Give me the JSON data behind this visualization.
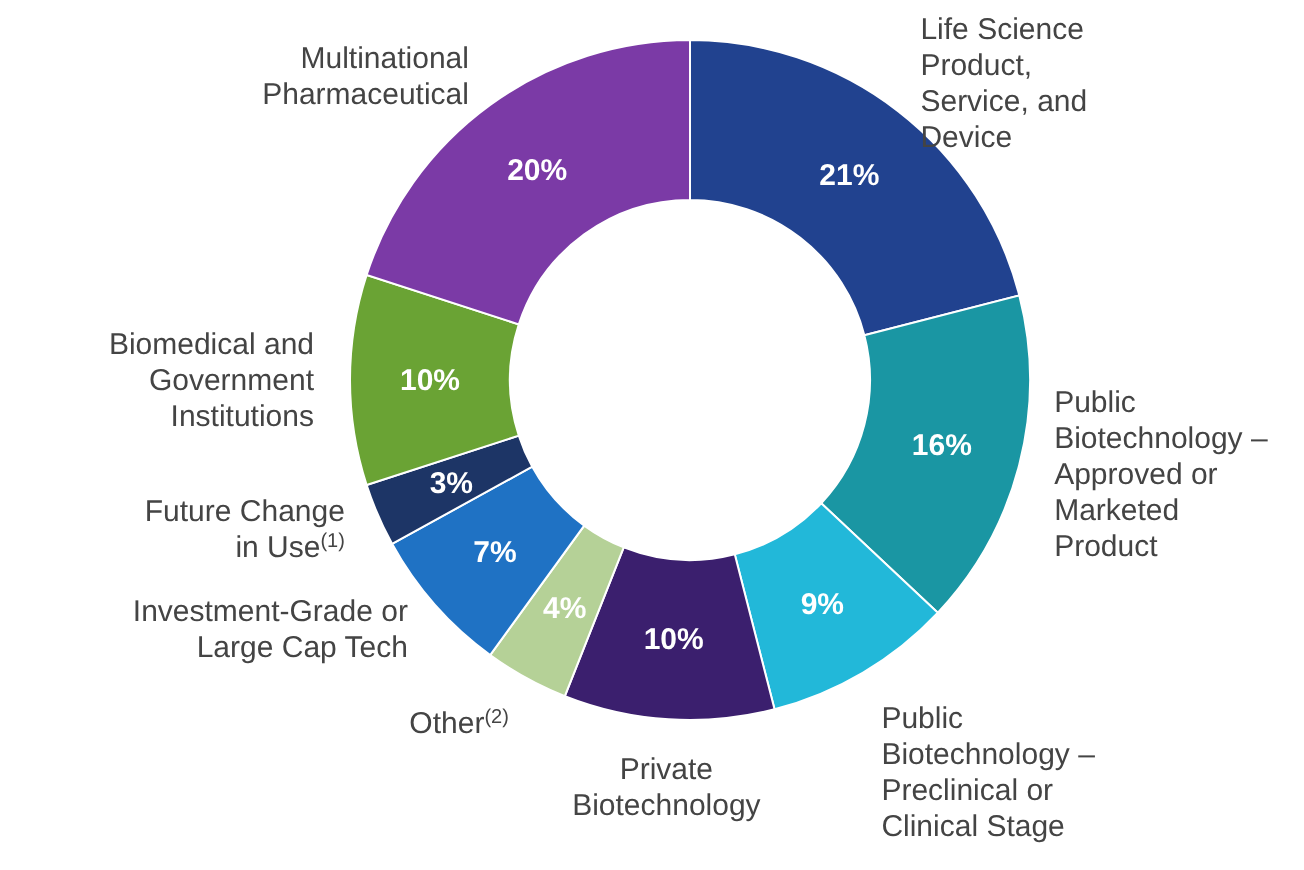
{
  "chart_data": {
    "type": "donut",
    "categories": [
      "Life Science\nProduct,\nService, and\nDevice",
      "Public\nBiotechnology –\nApproved or\nMarketed\nProduct",
      "Public\nBiotechnology –\nPreclinical or\nClinical Stage",
      "Private\nBiotechnology",
      "Other$^{(2)}$",
      "Investment-Grade or\nLarge Cap Tech",
      "Future Change\nin Use$^{(1)}$",
      "Biomedical and\nGovernment\nInstitutions",
      "Multinational\nPharmaceutical"
    ],
    "values": [
      21,
      16,
      9,
      10,
      4,
      7,
      3,
      10,
      20
    ],
    "colors": [
      "#21428f",
      "#1a96a3",
      "#22b8d9",
      "#3b1f6e",
      "#b5d197",
      "#1f72c4",
      "#1d3566",
      "#6aa334",
      "#7b3aa6"
    ],
    "value_labels": [
      "21%",
      "16%",
      "9%",
      "10%",
      "4%",
      "7%",
      "3%",
      "10%",
      "20%"
    ]
  }
}
